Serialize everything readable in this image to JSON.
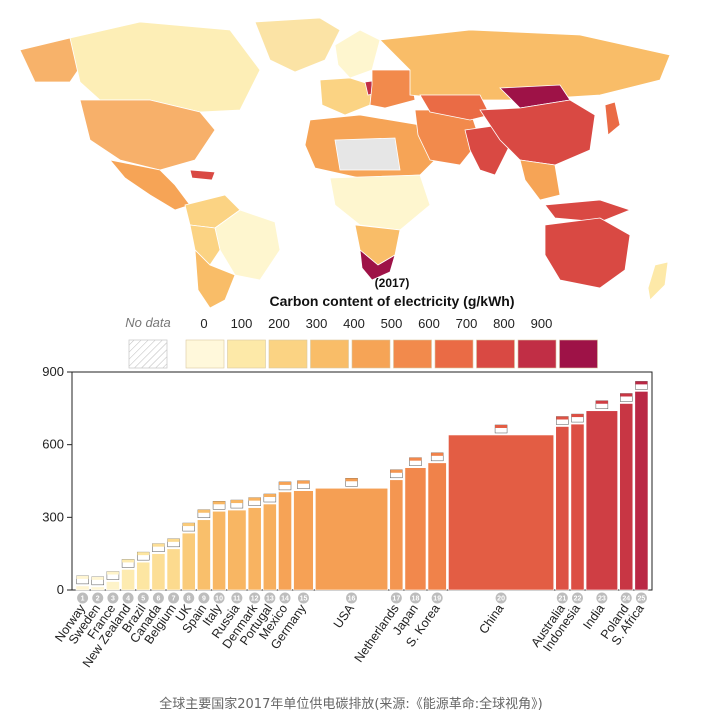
{
  "map": {
    "year_label": "(2017)",
    "title": "Carbon content of electricity (g/kWh)",
    "no_data_label": "No data",
    "legend_ticks": [
      "0",
      "100",
      "200",
      "300",
      "400",
      "500",
      "600",
      "700",
      "800",
      "900"
    ],
    "legend_colors": [
      "#fff8db",
      "#fde9a8",
      "#fbd383",
      "#f9bd68",
      "#f6a456",
      "#f28a4c",
      "#ea6b45",
      "#d94943",
      "#c12e45",
      "#9e1247"
    ],
    "no_data_color": "#e6e6e6"
  },
  "chart_data": {
    "type": "bar",
    "title": "",
    "xlabel": "",
    "ylabel": "",
    "ylim": [
      0,
      900
    ],
    "yticks": [
      0,
      300,
      600,
      900
    ],
    "bar_widths_note": "",
    "categories": [
      "Norway",
      "Sweden",
      "France",
      "New Zealand",
      "Brazil",
      "Canada",
      "Belgium",
      "UK",
      "Spain",
      "Italy",
      "Russia",
      "Denmark",
      "Portugal",
      "Mexico",
      "Germany",
      "USA",
      "Netherlands",
      "Japan",
      "S. Korea",
      "China",
      "Australia",
      "Indonesia",
      "India",
      "Poland",
      "S. Africa"
    ],
    "numbers": [
      "1",
      "2",
      "3",
      "4",
      "5",
      "6",
      "7",
      "8",
      "9",
      "10",
      "11",
      "12",
      "13",
      "14",
      "15",
      "16",
      "17",
      "18",
      "19",
      "20",
      "21",
      "22",
      "23",
      "24",
      "25"
    ],
    "values": [
      17,
      13,
      35,
      85,
      115,
      150,
      170,
      235,
      290,
      325,
      330,
      340,
      355,
      405,
      410,
      420,
      455,
      505,
      525,
      640,
      675,
      685,
      740,
      770,
      820
    ],
    "relative_widths": [
      1,
      1,
      1,
      1,
      1,
      1,
      1,
      1,
      1,
      1,
      1.4,
      1,
      1,
      1,
      1.5,
      5.5,
      1,
      1.6,
      1.4,
      8,
      1,
      1,
      2.4,
      1,
      1
    ]
  },
  "caption": "全球主要国家2017年单位供电碳排放(来源:《能源革命:全球视角》)"
}
